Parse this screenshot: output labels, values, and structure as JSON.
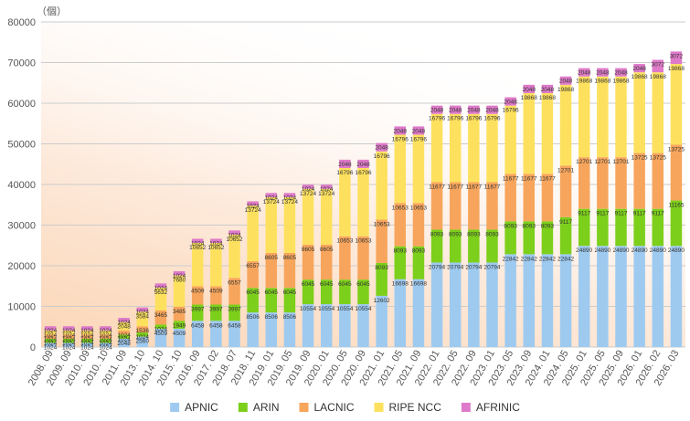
{
  "chart_data": {
    "type": "bar",
    "stacked": true,
    "unit_label": "（個）",
    "ylim": [
      0,
      80000
    ],
    "yticks": [
      0,
      10000,
      20000,
      30000,
      40000,
      50000,
      60000,
      70000,
      80000
    ],
    "grid": true,
    "legend_position": "bottom",
    "categories": [
      "2008. 09",
      "2009. 09",
      "2010. 09",
      "2010. 10",
      "2011. 09",
      "2013. 10",
      "2014. 10",
      "2015. 10",
      "2016. 09",
      "2017. 02",
      "2018. 07",
      "2018. 11",
      "2019. 01",
      "2019. 05",
      "2019. 09",
      "2020. 01",
      "2020. 05",
      "2020. 09",
      "2021. 01",
      "2021. 05",
      "2021. 09",
      "2022. 01",
      "2022. 05",
      "2022. 09",
      "2023. 01",
      "2023. 05",
      "2023. 09",
      "2024. 01",
      "2024. 05",
      "2025. 01",
      "2025. 05",
      "2025. 09",
      "2026. 01",
      "2026. 02",
      "2026. 03"
    ],
    "series": [
      {
        "name": "APNIC",
        "color": "#9ecaf0",
        "values": [
          1024,
          1024,
          1024,
          1024,
          2048,
          2560,
          4509,
          4509,
          6458,
          6458,
          6458,
          8506,
          8506,
          8506,
          10554,
          10554,
          10554,
          10554,
          12602,
          16698,
          16698,
          20794,
          20794,
          20794,
          20794,
          22842,
          22842,
          22842,
          22842,
          24890,
          24890,
          24890,
          24890,
          24890,
          24890
        ]
      },
      {
        "name": "ARIN",
        "color": "#7ccf1a",
        "values": [
          1024,
          1024,
          1024,
          1024,
          1024,
          1024,
          1024,
          1949,
          3997,
          3997,
          3997,
          6045,
          6045,
          6045,
          6045,
          6045,
          6045,
          6045,
          8093,
          8093,
          8093,
          8093,
          8093,
          8093,
          8093,
          8093,
          8093,
          8093,
          9117,
          9117,
          9117,
          9117,
          9117,
          9117,
          11165
        ]
      },
      {
        "name": "LACNIC",
        "color": "#f7a55c",
        "values": [
          1024,
          1024,
          1024,
          1024,
          1024,
          1536,
          3465,
          3485,
          4509,
          4509,
          6557,
          6557,
          8605,
          8605,
          8605,
          8605,
          10653,
          10653,
          10653,
          10653,
          10653,
          11677,
          11677,
          11677,
          11677,
          11677,
          11677,
          11677,
          12701,
          12701,
          12701,
          12701,
          13725,
          13725,
          13725
        ]
      },
      {
        "name": "RIPE NCC",
        "color": "#fde15e",
        "values": [
          1024,
          1024,
          1024,
          1024,
          2048,
          3584,
          5632,
          7680,
          10652,
          10652,
          10652,
          13724,
          13724,
          13724,
          13724,
          13724,
          16796,
          16796,
          16796,
          16796,
          16796,
          16796,
          16796,
          16796,
          16796,
          16796,
          19868,
          19868,
          19868,
          19868,
          19868,
          19868,
          19868,
          19868,
          19868
        ]
      },
      {
        "name": "AFRINIC",
        "color": "#de7ac9",
        "values": [
          1024,
          1024,
          1024,
          1024,
          1024,
          1024,
          1024,
          1024,
          1024,
          1024,
          1024,
          1024,
          1024,
          1024,
          1024,
          1024,
          2048,
          2048,
          2048,
          2048,
          2048,
          2048,
          2048,
          2048,
          2048,
          2048,
          2048,
          2048,
          2048,
          2048,
          2048,
          2048,
          2048,
          3072,
          3072
        ]
      }
    ]
  }
}
